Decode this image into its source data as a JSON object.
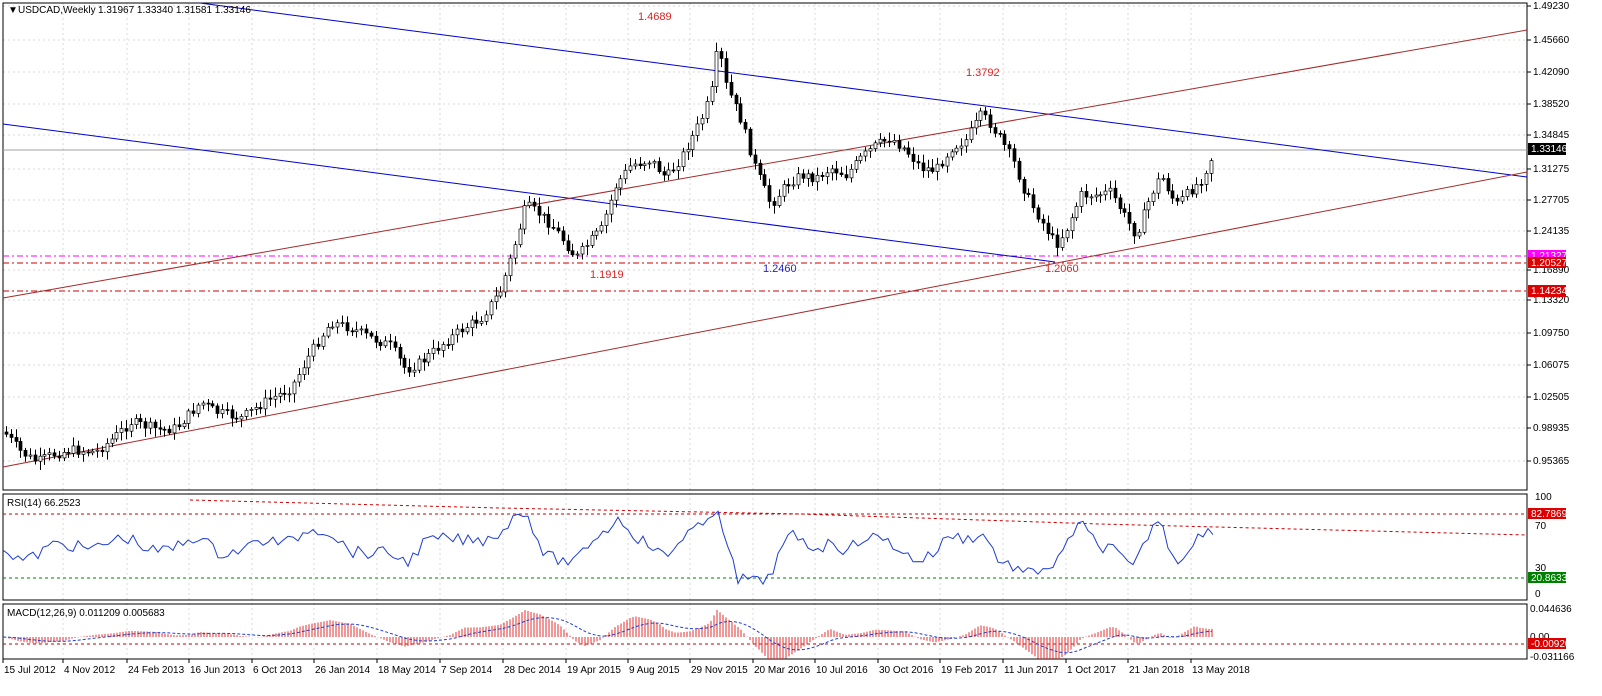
{
  "window": {
    "symbol_timeframe": "USDCAD,Weekly",
    "ohlc": "1.31967 1.33340 1.31581 1.33146"
  },
  "main_axis": {
    "ticks": [
      "1.49230",
      "1.45660",
      "1.42090",
      "1.38520",
      "1.34845",
      "1.31275",
      "1.27705",
      "1.24135",
      "1.16890",
      "1.13320",
      "1.09750",
      "1.06075",
      "1.02505",
      "0.98935",
      "0.95365"
    ],
    "current_price": "1.33146",
    "level_magenta": "1.21327",
    "level_red_1": "1.20527",
    "level_red_2": "1.14234"
  },
  "annotations": {
    "high_2016": "1.4689",
    "high_2017": "1.3792",
    "low_2016": "1.2460",
    "low_2015": "1.1919",
    "low_2017": "1.2060"
  },
  "rsi": {
    "header": "RSI(14) 66.2523",
    "ticks": [
      "100",
      "70",
      "30",
      "0"
    ],
    "upper_value": "82.7869",
    "lower_value": "20.8633"
  },
  "macd": {
    "header": "MACD(12,26,9) 0.011209 0.005683",
    "ticks": [
      "0.044636",
      "0.00",
      "-0.031166"
    ],
    "level_value": "-0.00920"
  },
  "time_axis": [
    "15 Jul 2012",
    "4 Nov 2012",
    "24 Feb 2013",
    "16 Jun 2013",
    "6 Oct 2013",
    "26 Jan 2014",
    "18 May 2014",
    "7 Sep 2014",
    "28 Dec 2014",
    "19 Apr 2015",
    "9 Aug 2015",
    "29 Nov 2015",
    "20 Mar 2016",
    "10 Jul 2016",
    "30 Oct 2016",
    "19 Feb 2017",
    "11 Jun 2017",
    "1 Oct 2017",
    "21 Jan 2018",
    "13 May 2018"
  ],
  "colors": {
    "bull_body": "#ffffff",
    "bear_body": "#000000",
    "blue_channel": "#0000cc",
    "red_channel": "#a52a2a",
    "magenta_level": "#ff00ff",
    "red_level": "#cc0000",
    "rsi_line": "#1e3cd2",
    "macd_hist": "#e03030",
    "macd_signal": "#1e3cd2",
    "grid": "#c8c8c8",
    "tag_dark": "#000000",
    "tag_green": "#008000",
    "tag_red": "#dd0000",
    "tag_magenta": "#ff00ff"
  }
}
